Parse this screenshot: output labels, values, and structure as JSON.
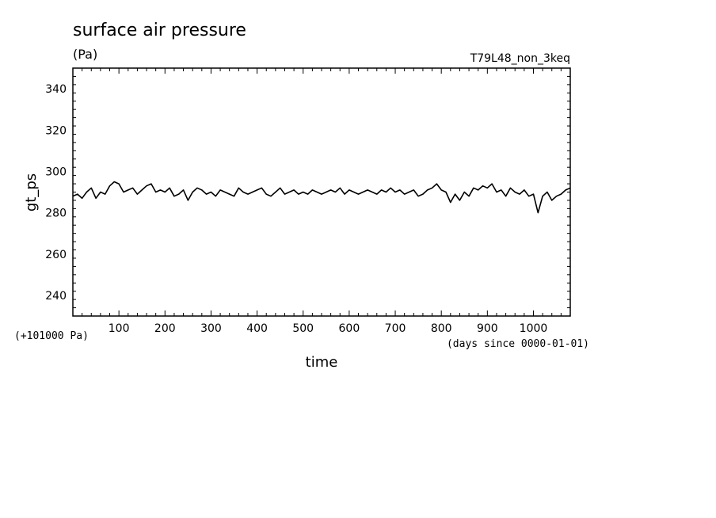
{
  "chart_data": {
    "type": "line",
    "title": "surface air pressure",
    "units": "(Pa)",
    "run_label": "T79L48_non_3keq",
    "xlabel": "time",
    "x_unit_note": "(days since 0000-01-01)",
    "ylabel": "gt_ps",
    "y_offset_note": "(+101000 Pa)",
    "xlim": [
      0,
      1080
    ],
    "ylim": [
      230,
      350
    ],
    "x_ticks": [
      "100",
      "200",
      "300",
      "400",
      "500",
      "600",
      "700",
      "800",
      "900",
      "1000"
    ],
    "y_ticks": [
      "240",
      "260",
      "280",
      "300",
      "320",
      "340"
    ],
    "grid": false,
    "legend": "none",
    "color": "#000000",
    "series": [
      {
        "x": [
          0,
          10,
          20,
          30,
          40,
          50,
          60,
          70,
          80,
          90,
          100,
          110,
          120,
          130,
          140,
          150,
          160,
          170,
          180,
          190,
          200,
          210,
          220,
          230,
          240,
          250,
          260,
          270,
          280,
          290,
          300,
          310,
          320,
          330,
          340,
          350,
          360,
          370,
          380,
          390,
          400,
          410,
          420,
          430,
          440,
          450,
          460,
          470,
          480,
          490,
          500,
          510,
          520,
          530,
          540,
          550,
          560,
          570,
          580,
          590,
          600,
          610,
          620,
          630,
          640,
          650,
          660,
          670,
          680,
          690,
          700,
          710,
          720,
          730,
          740,
          750,
          760,
          770,
          780,
          790,
          800,
          810,
          820,
          830,
          840,
          850,
          860,
          870,
          880,
          890,
          900,
          910,
          920,
          930,
          940,
          950,
          960,
          970,
          980,
          990,
          1000,
          1010,
          1020,
          1030,
          1040,
          1050,
          1060,
          1070,
          1080
        ],
        "y": [
          288,
          289,
          287,
          290,
          292,
          287,
          290,
          289,
          293,
          295,
          294,
          290,
          291,
          292,
          289,
          291,
          293,
          294,
          290,
          291,
          290,
          292,
          288,
          289,
          291,
          286,
          290,
          292,
          291,
          289,
          290,
          288,
          291,
          290,
          289,
          288,
          292,
          290,
          289,
          290,
          291,
          292,
          289,
          288,
          290,
          292,
          289,
          290,
          291,
          289,
          290,
          289,
          291,
          290,
          289,
          290,
          291,
          290,
          292,
          289,
          291,
          290,
          289,
          290,
          291,
          290,
          289,
          291,
          290,
          292,
          290,
          291,
          289,
          290,
          291,
          288,
          289,
          291,
          292,
          294,
          291,
          290,
          285,
          289,
          286,
          290,
          288,
          292,
          291,
          293,
          292,
          294,
          290,
          291,
          288,
          292,
          290,
          289,
          291,
          288,
          289,
          280,
          288,
          290,
          286,
          288,
          289,
          291,
          292
        ]
      }
    ]
  }
}
